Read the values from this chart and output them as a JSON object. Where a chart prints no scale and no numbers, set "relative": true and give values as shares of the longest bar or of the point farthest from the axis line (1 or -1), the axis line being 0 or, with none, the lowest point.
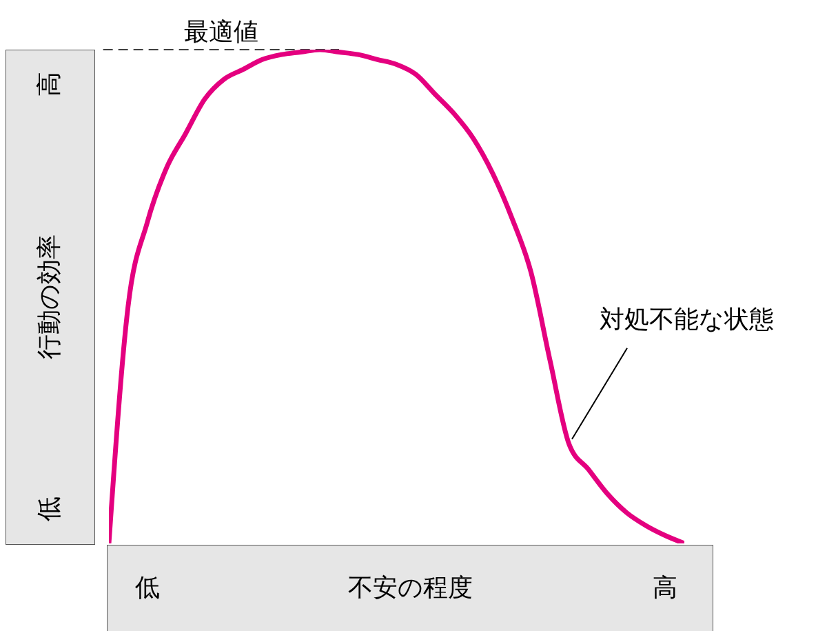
{
  "chart_data": {
    "type": "line",
    "xlabel": "不安の程度",
    "ylabel": "行動の効率",
    "relative": true,
    "categories": [
      null,
      null,
      "低",
      null,
      null,
      null,
      null,
      null,
      null,
      null,
      null,
      null,
      null,
      null,
      null,
      null,
      null,
      null,
      null,
      null,
      null,
      null,
      null,
      null,
      null,
      null,
      null,
      null,
      null,
      "高",
      null
    ],
    "series": [
      {
        "color": "#e4007f",
        "values": [
          0,
          0.48,
          0.65,
          0.76,
          0.83,
          0.9,
          0.94,
          0.96,
          0.98,
          0.99,
          0.995,
          1,
          0.995,
          0.99,
          0.98,
          0.97,
          0.95,
          0.91,
          0.87,
          0.82,
          0.75,
          0.66,
          0.55,
          0.37,
          0.2,
          0.15,
          0.1,
          0.062,
          0.036,
          0.016,
          0
        ]
      }
    ],
    "ref_lines": [
      {
        "axis": "y",
        "value": 1,
        "label": "最適値",
        "line_style": "dashed",
        "color": "#000000"
      }
    ],
    "annotations": [
      "対処不能な状態",
      "高",
      "低"
    ]
  }
}
